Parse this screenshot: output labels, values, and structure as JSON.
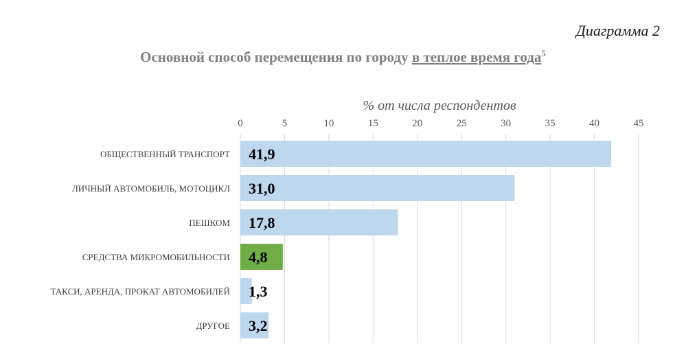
{
  "diagram_label": "Диаграмма 2",
  "title": {
    "prefix": "Основной способ перемещения по городу ",
    "underlined": "в теплое время года",
    "footnote": "5"
  },
  "chart_data": {
    "type": "bar",
    "orientation": "horizontal",
    "title": "Основной способ перемещения по городу в теплое время года",
    "xlabel": "% от числа респондентов",
    "ylabel": "",
    "xlim": [
      0,
      45
    ],
    "ticks": [
      "0",
      "5",
      "10",
      "15",
      "20",
      "25",
      "30",
      "35",
      "40",
      "45"
    ],
    "tick_values": [
      0,
      5,
      10,
      15,
      20,
      25,
      30,
      35,
      40,
      45
    ],
    "categories": [
      "ОБЩЕСТВЕННЫЙ ТРАНСПОРТ",
      "ЛИЧНЫЙ АВТОМОБИЛЬ, МОТОЦИКЛ",
      "ПЕШКОМ",
      "СРЕДСТВА МИКРОМОБИЛЬНОСТИ",
      "ТАКСИ, АРЕНДА, ПРОКАТ АВТОМОБИЛЕЙ",
      "ДРУГОЕ"
    ],
    "values": [
      41.9,
      31.0,
      17.8,
      4.8,
      1.3,
      3.2
    ],
    "value_labels": [
      "41,9",
      "31,0",
      "17,8",
      "4,8",
      "1,3",
      "3,2"
    ],
    "bar_colors": [
      "#bdd7ee",
      "#bdd7ee",
      "#bdd7ee",
      "#70ad47",
      "#bdd7ee",
      "#bdd7ee"
    ],
    "grid": true,
    "axis_position": "top"
  }
}
